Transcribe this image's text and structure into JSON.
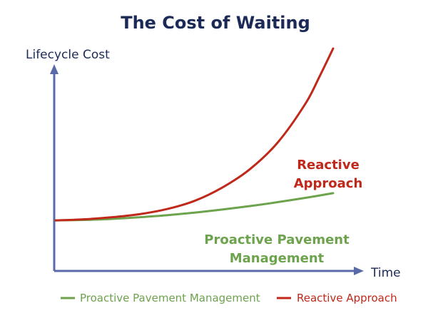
{
  "chart_data": {
    "type": "line",
    "title": "The Cost of Waiting",
    "xlabel": "Time",
    "ylabel": "Lifecycle Cost",
    "xlim": [
      0,
      1
    ],
    "ylim": [
      0,
      1
    ],
    "grid": false,
    "legend_position": "bottom",
    "annotations": {
      "reactive": [
        "Reactive",
        "Approach"
      ],
      "proactive": [
        "Proactive Pavement",
        "Management"
      ]
    },
    "series": [
      {
        "name": "Proactive Pavement Management",
        "color": "#6da34d",
        "x": [
          0,
          0.1,
          0.2,
          0.3,
          0.4,
          0.5,
          0.6,
          0.7,
          0.8,
          0.9,
          1.0
        ],
        "y": [
          0.16,
          0.162,
          0.167,
          0.175,
          0.185,
          0.198,
          0.213,
          0.23,
          0.249,
          0.27,
          0.293
        ]
      },
      {
        "name": "Reactive Approach",
        "color": "#c0281a",
        "x": [
          0,
          0.1,
          0.2,
          0.3,
          0.4,
          0.5,
          0.6,
          0.7,
          0.8,
          0.9,
          0.95,
          1.0
        ],
        "y": [
          0.16,
          0.165,
          0.175,
          0.19,
          0.215,
          0.255,
          0.32,
          0.41,
          0.54,
          0.73,
          0.86,
          1.0
        ]
      }
    ]
  },
  "colors": {
    "axis": "#5a6aa8",
    "title": "#1c2a57"
  }
}
